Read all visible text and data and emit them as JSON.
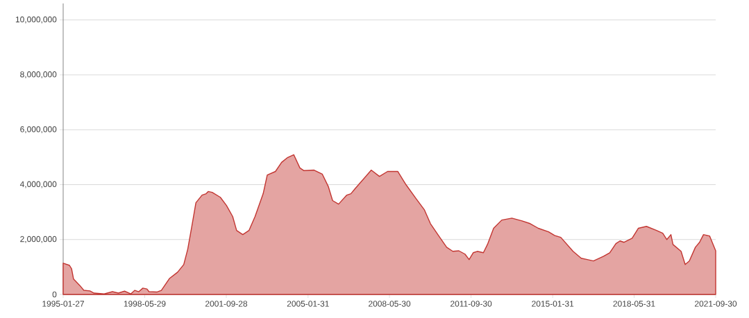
{
  "chart_data": {
    "type": "area",
    "color": "#c23531",
    "marker": "none",
    "grid": "y",
    "xlim": [
      "1995-01-27",
      "2021-09-30"
    ],
    "xticks": [
      "1995-01-27",
      "1998-05-29",
      "2001-09-28",
      "2005-01-31",
      "2008-05-30",
      "2011-09-30",
      "2015-01-31",
      "2018-05-31",
      "2021-09-30"
    ],
    "ylim": [
      0,
      10600000
    ],
    "yticks": [
      0,
      {
        "value": 2000000,
        "label": "2,000,000"
      },
      {
        "value": 4000000,
        "label": "4,000,000"
      },
      {
        "value": 6000000,
        "label": "6,000,000"
      },
      {
        "value": 8000000,
        "label": "8,000,000"
      },
      {
        "value": 10000000,
        "label": "10,000,000"
      }
    ],
    "x": [
      "1995-01-27",
      "1995-05",
      "1995-06",
      "1995-07",
      "1995-10",
      "1995-12",
      "1996-03",
      "1996-05",
      "1996-10",
      "1997-02",
      "1997-05",
      "1997-08",
      "1997-11",
      "1998-01",
      "1998-03",
      "1998-05",
      "1998-07",
      "1998-08",
      "1998-12",
      "1999-02",
      "1999-06",
      "1999-10",
      "2000-01",
      "2000-03",
      "2000-05",
      "2000-07",
      "2000-10",
      "2000-12",
      "2001-01",
      "2001-03",
      "2001-07",
      "2001-10",
      "2002-01",
      "2002-03",
      "2002-06",
      "2002-09",
      "2002-12",
      "2003-04",
      "2003-06",
      "2003-10",
      "2004-01",
      "2004-04",
      "2004-07",
      "2004-10",
      "2004-12",
      "2005-05",
      "2005-09",
      "2005-12",
      "2006-02",
      "2006-05",
      "2006-09",
      "2006-11",
      "2007-01",
      "2007-04",
      "2007-09",
      "2008-01",
      "2008-05",
      "2008-10",
      "2009-02",
      "2009-07",
      "2009-11",
      "2010-02",
      "2010-06",
      "2010-10",
      "2011-01",
      "2011-04",
      "2011-07",
      "2011-09",
      "2011-11",
      "2012-01",
      "2012-04",
      "2012-06",
      "2012-09",
      "2013-01",
      "2013-06",
      "2013-11",
      "2014-03",
      "2014-07",
      "2014-12",
      "2015-03",
      "2015-06",
      "2015-12",
      "2016-04",
      "2016-07",
      "2016-10",
      "2017-03",
      "2017-06",
      "2017-09",
      "2017-11",
      "2018-01",
      "2018-05",
      "2018-08",
      "2018-12",
      "2019-05",
      "2019-08",
      "2019-10",
      "2019-12",
      "2020-01",
      "2020-05",
      "2020-07",
      "2020-09",
      "2020-12",
      "2021-02",
      "2021-04",
      "2021-07",
      "2021-09-30"
    ],
    "values": [
      1140000,
      1060000,
      940000,
      560000,
      330000,
      150000,
      130000,
      50000,
      20000,
      100000,
      50000,
      120000,
      20000,
      150000,
      100000,
      230000,
      200000,
      100000,
      90000,
      150000,
      580000,
      810000,
      1090000,
      1650000,
      2480000,
      3340000,
      3620000,
      3670000,
      3750000,
      3720000,
      3540000,
      3240000,
      2840000,
      2330000,
      2180000,
      2330000,
      2840000,
      3670000,
      4350000,
      4480000,
      4810000,
      4990000,
      5090000,
      4610000,
      4510000,
      4530000,
      4380000,
      3920000,
      3420000,
      3290000,
      3620000,
      3670000,
      3850000,
      4100000,
      4530000,
      4300000,
      4480000,
      4480000,
      4000000,
      3490000,
      3090000,
      2580000,
      2150000,
      1720000,
      1570000,
      1590000,
      1470000,
      1270000,
      1520000,
      1570000,
      1520000,
      1820000,
      2410000,
      2710000,
      2780000,
      2680000,
      2580000,
      2410000,
      2280000,
      2150000,
      2080000,
      1570000,
      1320000,
      1270000,
      1220000,
      1390000,
      1520000,
      1850000,
      1950000,
      1900000,
      2050000,
      2410000,
      2480000,
      2330000,
      2230000,
      2000000,
      2180000,
      1820000,
      1570000,
      1090000,
      1220000,
      1720000,
      1900000,
      2180000,
      2130000,
      1590000
    ]
  }
}
